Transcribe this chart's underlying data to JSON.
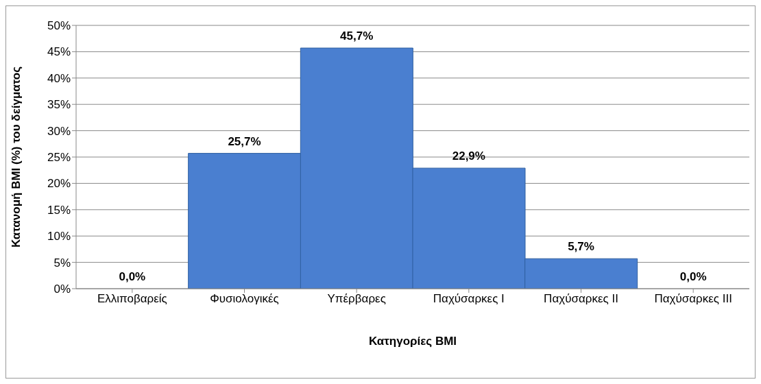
{
  "chart_data": {
    "type": "bar",
    "xlabel": "Κατηγορίες BMI",
    "ylabel": "Κατανομή BMI  (%) του δείγματος",
    "categories": [
      "Ελλιποβαρείς",
      "Φυσιολογικές",
      "Υπέρβαρες",
      "Παχύσαρκες Ι",
      "Παχύσαρκες ΙΙ",
      "Παχύσαρκες ΙΙΙ"
    ],
    "values": [
      0,
      25.7,
      45.7,
      22.9,
      5.7,
      0
    ],
    "value_labels": [
      "0,0%",
      "25,7%",
      "45,7%",
      "22,9%",
      "5,7%",
      "0,0%"
    ],
    "color": "#4a7fd0",
    "ylim": [
      0,
      50
    ],
    "yticks": [
      {
        "value": 0,
        "label": "0%"
      },
      {
        "value": 5,
        "label": "5%"
      },
      {
        "value": 10,
        "label": "10%"
      },
      {
        "value": 15,
        "label": "15%"
      },
      {
        "value": 20,
        "label": "20%"
      },
      {
        "value": 25,
        "label": "25%"
      },
      {
        "value": 30,
        "label": "30%"
      },
      {
        "value": 35,
        "label": "35%"
      },
      {
        "value": 40,
        "label": "40%"
      },
      {
        "value": 45,
        "label": "45%"
      },
      {
        "value": 50,
        "label": "50%"
      }
    ],
    "grid": "y",
    "legend": false
  }
}
